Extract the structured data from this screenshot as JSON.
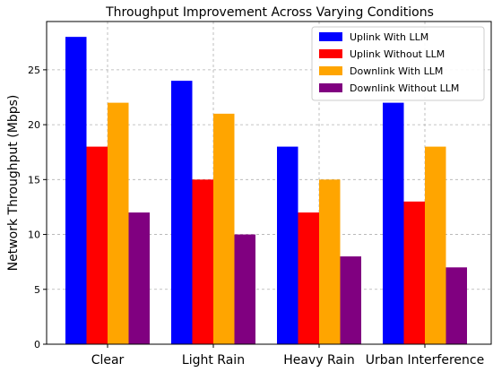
{
  "chart_data": {
    "type": "bar",
    "title": "Throughput Improvement Across Varying Conditions",
    "xlabel": "",
    "ylabel": "Network Throughput (Mbps)",
    "categories": [
      "Clear",
      "Light Rain",
      "Heavy Rain",
      "Urban Interference"
    ],
    "series": [
      {
        "name": "Uplink With LLM",
        "color": "#0000ff",
        "values": [
          28,
          24,
          18,
          22
        ]
      },
      {
        "name": "Uplink Without LLM",
        "color": "#ff0000",
        "values": [
          18,
          15,
          12,
          13
        ]
      },
      {
        "name": "Downlink With LLM",
        "color": "#ffa500",
        "values": [
          22,
          21,
          15,
          18
        ]
      },
      {
        "name": "Downlink Without LLM",
        "color": "#800080",
        "values": [
          12,
          10,
          8,
          7
        ]
      }
    ],
    "ylim": [
      0,
      29.4
    ],
    "yticks": [
      0,
      5,
      10,
      15,
      20,
      25
    ],
    "grid": true,
    "legend_position": "top-right"
  }
}
